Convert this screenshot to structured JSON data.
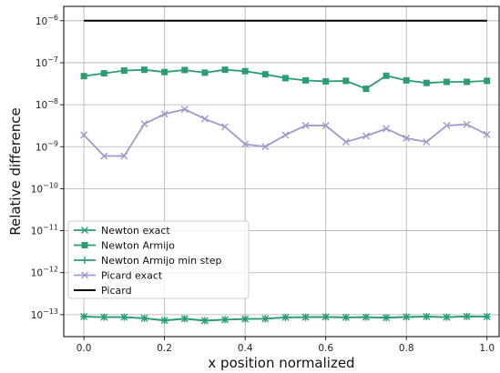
{
  "chart_data": {
    "type": "line",
    "xlabel": "x position normalized",
    "ylabel": "Relative difference",
    "xscale": "linear",
    "yscale": "log",
    "xlim": [
      -0.05,
      1.03
    ],
    "ylim": [
      3e-14,
      2.2e-06
    ],
    "xticks": [
      0.0,
      0.2,
      0.4,
      0.6,
      0.8,
      1.0
    ],
    "xtick_labels": [
      "0.0",
      "0.2",
      "0.4",
      "0.6",
      "0.8",
      "1.0"
    ],
    "ytick_exponents": [
      -13,
      -12,
      -11,
      -10,
      -9,
      -8,
      -7,
      -6
    ],
    "grid": true,
    "legend_position": "lower-left",
    "x": [
      0.0,
      0.05,
      0.1,
      0.15,
      0.2,
      0.25,
      0.3,
      0.35,
      0.4,
      0.45,
      0.5,
      0.55,
      0.6,
      0.65,
      0.7,
      0.75,
      0.8,
      0.85,
      0.9,
      0.95,
      1.0
    ],
    "series": [
      {
        "name": "Newton exact",
        "color": "#2a9d73",
        "marker": "x",
        "values": [
          9e-14,
          8.7e-14,
          8.7e-14,
          8.2e-14,
          7.3e-14,
          8e-14,
          7.2e-14,
          7.6e-14,
          7.9e-14,
          8e-14,
          8.6e-14,
          8.7e-14,
          8.8e-14,
          8.6e-14,
          8.7e-14,
          8.5e-14,
          8.8e-14,
          9e-14,
          8.7e-14,
          9.1e-14,
          9e-14
        ]
      },
      {
        "name": "Newton Armijo",
        "color": "#2a9d73",
        "marker": "square",
        "values": [
          4.8e-08,
          5.6e-08,
          6.5e-08,
          6.8e-08,
          6e-08,
          6.7e-08,
          5.8e-08,
          6.8e-08,
          6.3e-08,
          5.3e-08,
          4.3e-08,
          3.8e-08,
          3.6e-08,
          3.7e-08,
          2.4e-08,
          4.9e-08,
          3.8e-08,
          3.3e-08,
          3.5e-08,
          3.5e-08,
          3.7e-08
        ]
      },
      {
        "name": "Newton Armijo min step",
        "color": "#2a9d73",
        "marker": "plus",
        "values": [
          9e-14,
          8.7e-14,
          8.7e-14,
          8.2e-14,
          7.3e-14,
          8e-14,
          7.2e-14,
          7.6e-14,
          7.9e-14,
          8e-14,
          8.6e-14,
          8.7e-14,
          8.8e-14,
          8.6e-14,
          8.7e-14,
          8.5e-14,
          8.8e-14,
          9e-14,
          8.7e-14,
          9.1e-14,
          9e-14
        ]
      },
      {
        "name": "Picard exact",
        "color": "#9d9ccc",
        "marker": "x",
        "values": [
          1.9e-09,
          6e-10,
          6e-10,
          3.5e-09,
          6e-09,
          7.8e-09,
          4.6e-09,
          3e-09,
          1.15e-09,
          1e-09,
          1.9e-09,
          3.2e-09,
          3.2e-09,
          1.3e-09,
          1.8e-09,
          2.7e-09,
          1.6e-09,
          1.3e-09,
          3.2e-09,
          3.4e-09,
          1.95e-09
        ]
      },
      {
        "name": "Picard",
        "color": "#000000",
        "marker": "none",
        "values": [
          1e-06,
          1e-06,
          1e-06,
          1e-06,
          1e-06,
          1e-06,
          1e-06,
          1e-06,
          1e-06,
          1e-06,
          1e-06,
          1e-06,
          1e-06,
          1e-06,
          1e-06,
          1e-06,
          1e-06,
          1e-06,
          1e-06,
          1e-06,
          1e-06
        ]
      }
    ]
  }
}
